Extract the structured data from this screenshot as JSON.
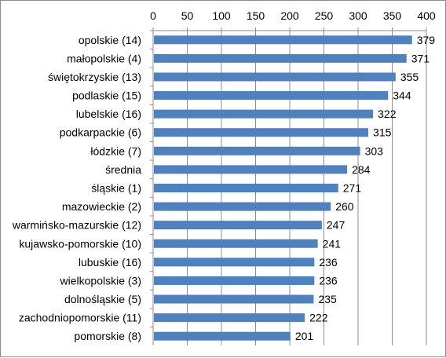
{
  "chart_data": {
    "type": "bar",
    "orientation": "horizontal",
    "categories": [
      "opolskie (14)",
      "małopolskie (4)",
      "świętokrzyskie (13)",
      "podlaskie (15)",
      "lubelskie (16)",
      "podkarpackie (6)",
      "łódzkie (7)",
      "średnia",
      "śląskie (1)",
      "mazowieckie (2)",
      "warmińsko-mazurskie (12)",
      "kujawsko-pomorskie (10)",
      "lubuskie (16)",
      "wielkopolskie (3)",
      "dolnośląskie (5)",
      "zachodniopomorskie (11)",
      "pomorskie (8)"
    ],
    "values": [
      379,
      371,
      355,
      344,
      322,
      315,
      303,
      284,
      271,
      260,
      247,
      241,
      236,
      236,
      235,
      222,
      201
    ],
    "xlim": [
      0,
      400
    ],
    "x_ticks": [
      "0",
      "50",
      "100",
      "150",
      "200",
      "250",
      "300",
      "350",
      "400"
    ],
    "x_axis_position": "top",
    "grid": "vertical",
    "legend": "none",
    "title": "",
    "xlabel": "",
    "ylabel": "",
    "bar_color": "#4f81bd",
    "grid_color": "#8c8c8c"
  }
}
